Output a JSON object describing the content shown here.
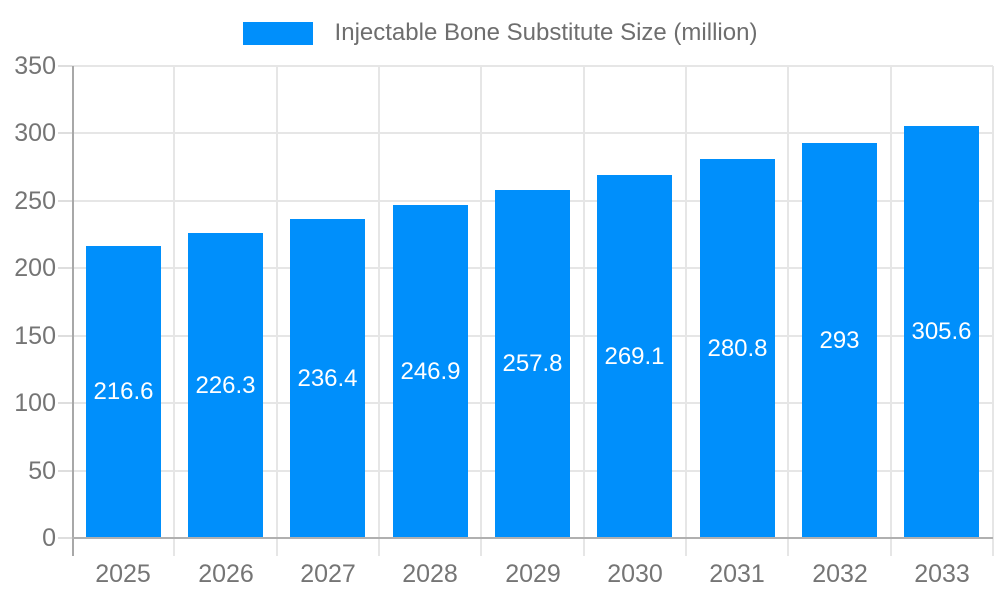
{
  "legend": {
    "label": "Injectable Bone Substitute Size (million)",
    "swatch_color": "#008FFB"
  },
  "chart_data": {
    "type": "bar",
    "title": "Injectable Bone Substitute Size (million)",
    "categories": [
      "2025",
      "2026",
      "2027",
      "2028",
      "2029",
      "2030",
      "2031",
      "2032",
      "2033"
    ],
    "series": [
      {
        "name": "Injectable Bone Substitute Size (million)",
        "values": [
          216.6,
          226.3,
          236.4,
          246.9,
          257.8,
          269.1,
          280.8,
          293,
          305.6
        ]
      }
    ],
    "value_labels": [
      "216.6",
      "226.3",
      "236.4",
      "246.9",
      "257.8",
      "269.1",
      "280.8",
      "293",
      "305.6"
    ],
    "xlabel": "",
    "ylabel": "",
    "ylim": [
      0,
      350
    ],
    "yticks": [
      0,
      50,
      100,
      150,
      200,
      250,
      300,
      350
    ],
    "grid": true,
    "legend_position": "top",
    "colors": {
      "bar": "#008FFB",
      "value_label": "#ffffff",
      "axis_text": "#757575",
      "grid_line": "#e6e6e6",
      "axis_line": "#b0b0b0"
    }
  }
}
